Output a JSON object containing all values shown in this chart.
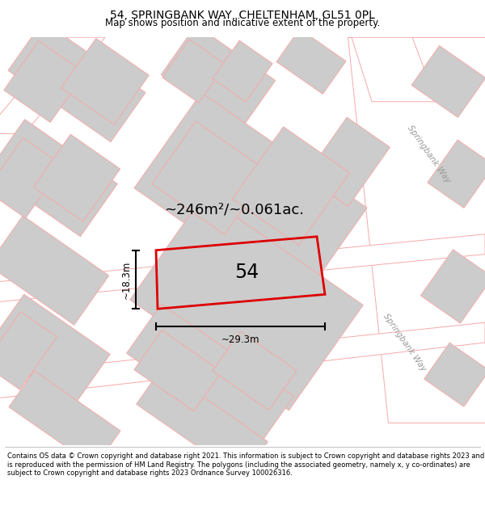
{
  "title_line1": "54, SPRINGBANK WAY, CHELTENHAM, GL51 0PL",
  "title_line2": "Map shows position and indicative extent of the property.",
  "footer_text": "Contains OS data © Crown copyright and database right 2021. This information is subject to Crown copyright and database rights 2023 and is reproduced with the permission of HM Land Registry. The polygons (including the associated geometry, namely x, y co-ordinates) are subject to Crown copyright and database rights 2023 Ordnance Survey 100026316.",
  "area_label": "~246m²/~0.061ac.",
  "house_number": "54",
  "dim_width": "~29.3m",
  "dim_height": "~18.3m",
  "road_label1": "Springbank Way",
  "road_label2": "Springbank Way",
  "map_bg": "#f0f0f0",
  "plot_color": "#dd0000",
  "building_fill": "#cccccc",
  "building_edge": "#f5aaaa",
  "road_fill": "#ffffff",
  "road_edge": "#f5aaaa",
  "title_fontsize": 10,
  "subtitle_fontsize": 8.5,
  "footer_fontsize": 6.0
}
